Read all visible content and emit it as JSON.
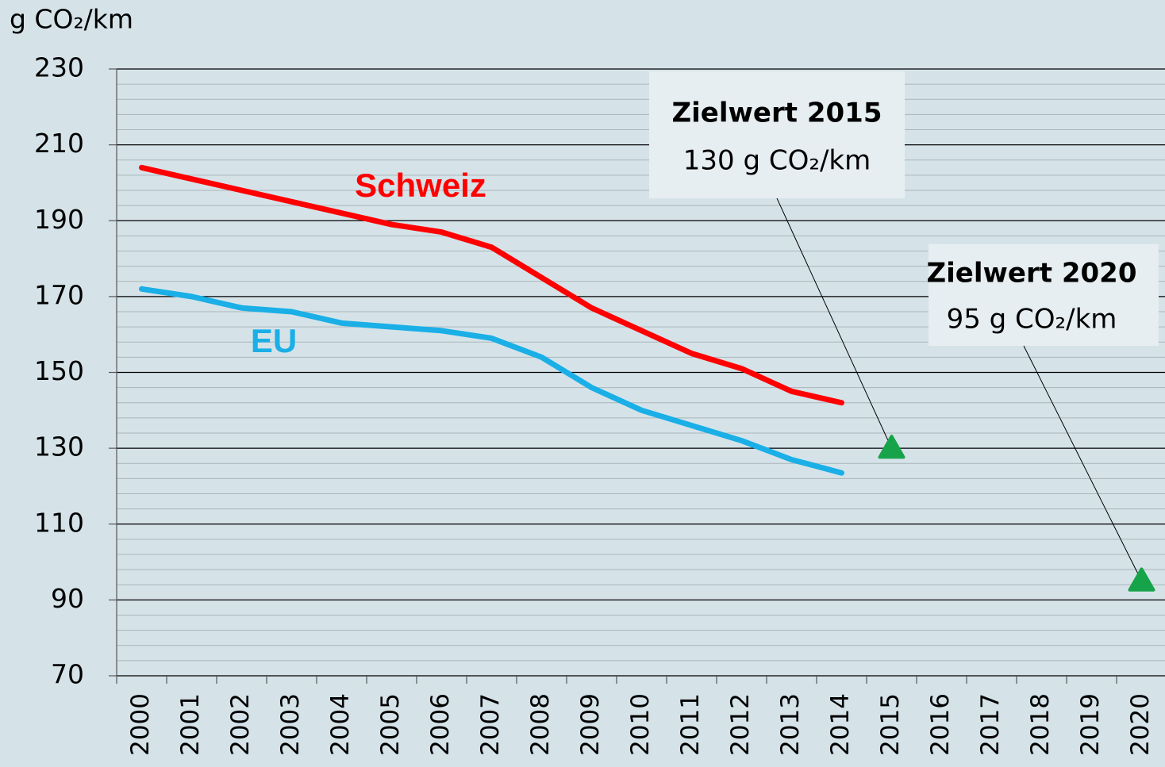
{
  "chart_data": {
    "type": "line",
    "y_label": "g CO₂/km",
    "categories": [
      "2000",
      "2001",
      "2002",
      "2003",
      "2004",
      "2005",
      "2006",
      "2007",
      "2008",
      "2009",
      "2010",
      "2011",
      "2012",
      "2013",
      "2014",
      "2015",
      "2016",
      "2017",
      "2018",
      "2019",
      "2020"
    ],
    "series": [
      {
        "name": "Schweiz",
        "color": "#ff0000",
        "values": [
          204,
          201,
          198,
          195,
          192,
          189,
          187,
          183,
          175,
          167,
          161,
          155,
          151,
          145,
          142,
          null,
          null,
          null,
          null,
          null,
          null
        ]
      },
      {
        "name": "EU",
        "color": "#1aafe6",
        "values": [
          172,
          170,
          167,
          166,
          163,
          162,
          161,
          159,
          154,
          146,
          140,
          136,
          132,
          127,
          123.5,
          null,
          null,
          null,
          null,
          null,
          null
        ]
      }
    ],
    "targets": {
      "color": "#17a34a",
      "values": [
        null,
        null,
        null,
        null,
        null,
        null,
        null,
        null,
        null,
        null,
        null,
        null,
        null,
        null,
        null,
        130,
        null,
        null,
        null,
        null,
        95
      ]
    },
    "annotations": [
      {
        "title": "Zielwert 2015",
        "text": "130 g CO₂/km"
      },
      {
        "title": "Zielwert 2020",
        "text": "95 g CO₂/km"
      }
    ],
    "ylim": [
      70,
      230
    ],
    "yticks": [
      70,
      90,
      110,
      130,
      150,
      170,
      190,
      210,
      230
    ],
    "grid": true,
    "minor_grid": true
  }
}
